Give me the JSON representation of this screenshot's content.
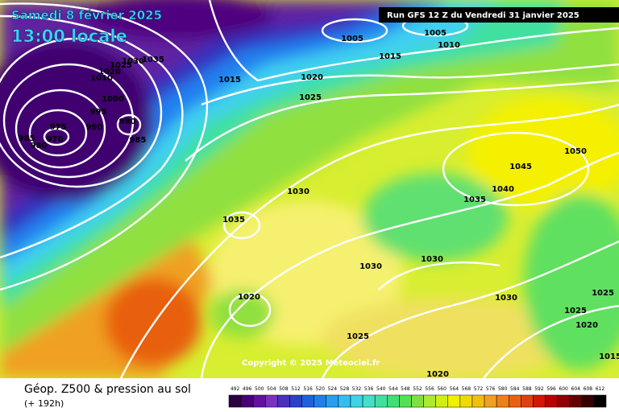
{
  "header": {
    "date": "Samedi 8 février 2025",
    "time": "13:00 locale",
    "run": "Run GFS 12 Z du Vendredi 31 janvier 2025"
  },
  "isobar_labels": [
    1005,
    1005,
    1010,
    1015,
    1015,
    1020,
    1025,
    1035,
    1030,
    1025,
    1020,
    1010,
    1000,
    995,
    990,
    980,
    985,
    975,
    970,
    985,
    980,
    1030,
    1035,
    1030,
    1030,
    1035,
    1040,
    1045,
    1050,
    1020,
    1025,
    1020,
    1025,
    1025,
    1020,
    1030,
    1015
  ],
  "copyright": "Copyright © 2025 Meteociel.fr",
  "footer": {
    "title": "Géop. Z500 & pression au sol",
    "lead": "(+ 192h)"
  },
  "legend": {
    "labels": [
      492,
      496,
      500,
      504,
      508,
      512,
      516,
      520,
      524,
      528,
      532,
      536,
      540,
      544,
      548,
      552,
      556,
      560,
      564,
      568,
      572,
      576,
      580,
      584,
      588,
      592,
      596,
      600,
      604,
      608,
      612
    ]
  }
}
